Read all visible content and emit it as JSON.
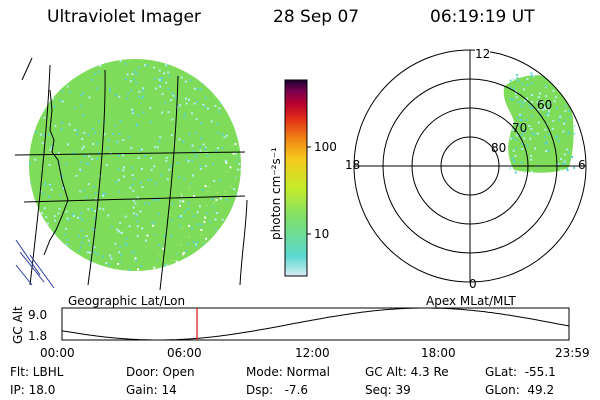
{
  "header": {
    "title": "Ultraviolet Imager",
    "date": "28 Sep 07",
    "time": "06:19:19 UT"
  },
  "colorbar": {
    "unit_label": "photon cm⁻²s⁻¹",
    "ticks": [
      "100",
      "10"
    ],
    "colors": [
      "#cfeaf2",
      "#5ad8d0",
      "#7ee06a",
      "#c7ec2a",
      "#f5c81c",
      "#f08414",
      "#e23018",
      "#b6002e",
      "#7c0050",
      "#2a0044"
    ]
  },
  "left_panel": {
    "label": "Geographic Lat/Lon",
    "fill_color": "#7edc5a",
    "speckle_color": "#5fd2c8"
  },
  "right_panel": {
    "label": "Apex MLat/MLT",
    "mlt_labels": {
      "top": "12",
      "left": "18",
      "right": "6",
      "bottom": "0"
    },
    "mlat_labels": [
      "60",
      "70",
      "80"
    ]
  },
  "altitude_plot": {
    "ylabel": "GC Alt",
    "ytick": "9.0",
    "ytick_bottom": "1.8",
    "xticks": [
      "00:00",
      "06:00",
      "12:00",
      "18:00",
      "23:59"
    ],
    "current_time_marker": "06:19",
    "marker_color": "#e02020"
  },
  "status": {
    "filter": "Flt: LBHL",
    "ip": "IP: 18.0",
    "door": "Door: Open",
    "gain": "Gain: 14",
    "mode": "Mode: Normal",
    "dsp": "Dsp:   -7.6",
    "gc_alt": "GC Alt: 4.3 Re",
    "seq": "Seq: 39",
    "glat": "GLat:  -55.1",
    "glon": "GLon:  49.2"
  }
}
